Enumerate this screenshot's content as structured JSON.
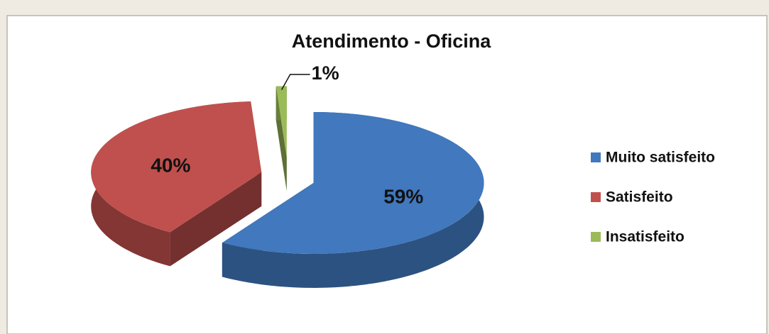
{
  "chart_data": {
    "type": "pie",
    "title": "Atendimento - Oficina",
    "categories": [
      "Muito satisfeito",
      "Satisfeito",
      "Insatisfeito"
    ],
    "values": [
      59,
      40,
      1
    ],
    "value_labels": [
      "59%",
      "40%",
      "1%"
    ],
    "colors": [
      "#4178be",
      "#c0504d",
      "#9bbb59"
    ],
    "legend": "right"
  }
}
